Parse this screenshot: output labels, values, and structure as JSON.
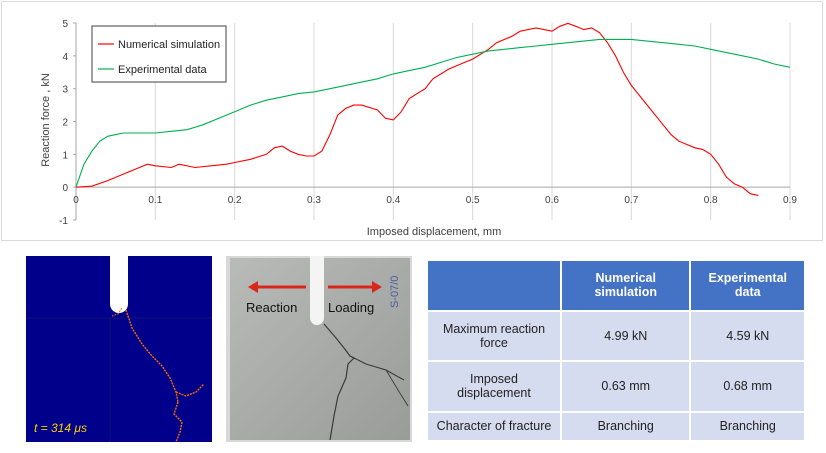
{
  "chart_data": {
    "type": "line",
    "xlabel": "Imposed displacement, mm",
    "ylabel": "Reaction force , kN",
    "xlim": [
      0,
      0.9
    ],
    "ylim": [
      -1,
      5
    ],
    "xticks": [
      "0",
      "0.1",
      "0.2",
      "0.3",
      "0.4",
      "0.5",
      "0.6",
      "0.7",
      "0.8",
      "0.9"
    ],
    "yticks": [
      "-1",
      "0",
      "1",
      "2",
      "3",
      "4",
      "5"
    ],
    "grid": "vertical",
    "legend_position": "top-left",
    "series": [
      {
        "name": "Numerical simulation",
        "color": "#ff0000",
        "x": [
          0,
          0.02,
          0.04,
          0.06,
          0.08,
          0.09,
          0.1,
          0.12,
          0.13,
          0.15,
          0.17,
          0.19,
          0.2,
          0.22,
          0.24,
          0.25,
          0.26,
          0.27,
          0.28,
          0.29,
          0.3,
          0.31,
          0.32,
          0.33,
          0.34,
          0.35,
          0.36,
          0.38,
          0.39,
          0.4,
          0.41,
          0.42,
          0.44,
          0.45,
          0.47,
          0.49,
          0.5,
          0.52,
          0.53,
          0.55,
          0.56,
          0.58,
          0.6,
          0.61,
          0.62,
          0.63,
          0.64,
          0.65,
          0.66,
          0.67,
          0.68,
          0.69,
          0.7,
          0.72,
          0.74,
          0.75,
          0.76,
          0.77,
          0.78,
          0.79,
          0.8,
          0.81,
          0.82,
          0.83,
          0.84,
          0.85,
          0.86
        ],
        "y": [
          0,
          0.03,
          0.2,
          0.4,
          0.6,
          0.7,
          0.65,
          0.6,
          0.7,
          0.6,
          0.65,
          0.7,
          0.75,
          0.85,
          1.0,
          1.2,
          1.25,
          1.1,
          1.0,
          0.95,
          0.95,
          1.1,
          1.6,
          2.2,
          2.4,
          2.5,
          2.5,
          2.35,
          2.1,
          2.05,
          2.3,
          2.7,
          3.0,
          3.3,
          3.6,
          3.8,
          3.9,
          4.2,
          4.4,
          4.6,
          4.75,
          4.85,
          4.75,
          4.9,
          4.99,
          4.9,
          4.8,
          4.85,
          4.7,
          4.4,
          4.0,
          3.5,
          3.1,
          2.5,
          1.9,
          1.6,
          1.4,
          1.3,
          1.2,
          1.15,
          1.0,
          0.7,
          0.3,
          0.1,
          0.0,
          -0.2,
          -0.25
        ]
      },
      {
        "name": "Experimental data",
        "color": "#00b050",
        "x": [
          0,
          0.01,
          0.02,
          0.03,
          0.04,
          0.05,
          0.06,
          0.08,
          0.1,
          0.12,
          0.14,
          0.16,
          0.18,
          0.2,
          0.22,
          0.24,
          0.26,
          0.28,
          0.3,
          0.32,
          0.34,
          0.36,
          0.38,
          0.4,
          0.42,
          0.44,
          0.46,
          0.48,
          0.5,
          0.52,
          0.54,
          0.56,
          0.58,
          0.6,
          0.62,
          0.64,
          0.66,
          0.68,
          0.7,
          0.72,
          0.74,
          0.76,
          0.78,
          0.8,
          0.82,
          0.84,
          0.86,
          0.88,
          0.9
        ],
        "y": [
          0,
          0.7,
          1.1,
          1.4,
          1.55,
          1.6,
          1.65,
          1.65,
          1.65,
          1.7,
          1.75,
          1.9,
          2.1,
          2.3,
          2.5,
          2.65,
          2.75,
          2.85,
          2.9,
          3.0,
          3.1,
          3.2,
          3.3,
          3.45,
          3.55,
          3.65,
          3.8,
          3.95,
          4.05,
          4.15,
          4.2,
          4.25,
          4.3,
          4.35,
          4.4,
          4.45,
          4.5,
          4.5,
          4.5,
          4.45,
          4.4,
          4.35,
          4.3,
          4.2,
          4.1,
          4.0,
          3.9,
          3.75,
          3.65
        ]
      }
    ]
  },
  "sim_panel": {
    "time_label": "t = 314 μs"
  },
  "photo_panel": {
    "reaction_label": "Reaction",
    "loading_label": "Loading",
    "specimen_mark": "S-07/0"
  },
  "results_table": {
    "headers": [
      "",
      "Numerical simulation",
      "Experimental data"
    ],
    "rows": [
      {
        "label": "Maximum reaction force",
        "sim": "4.99 kN",
        "exp": "4.59 kN"
      },
      {
        "label": "Imposed displacement",
        "sim": "0.63 mm",
        "exp": "0.68 mm"
      },
      {
        "label": "Character of fracture",
        "sim": "Branching",
        "exp": "Branching"
      }
    ]
  },
  "colors": {
    "table_header": "#4472c4",
    "table_cell": "#d6dcef",
    "sim_background": "#00008b",
    "crack": "#ff6a00"
  }
}
